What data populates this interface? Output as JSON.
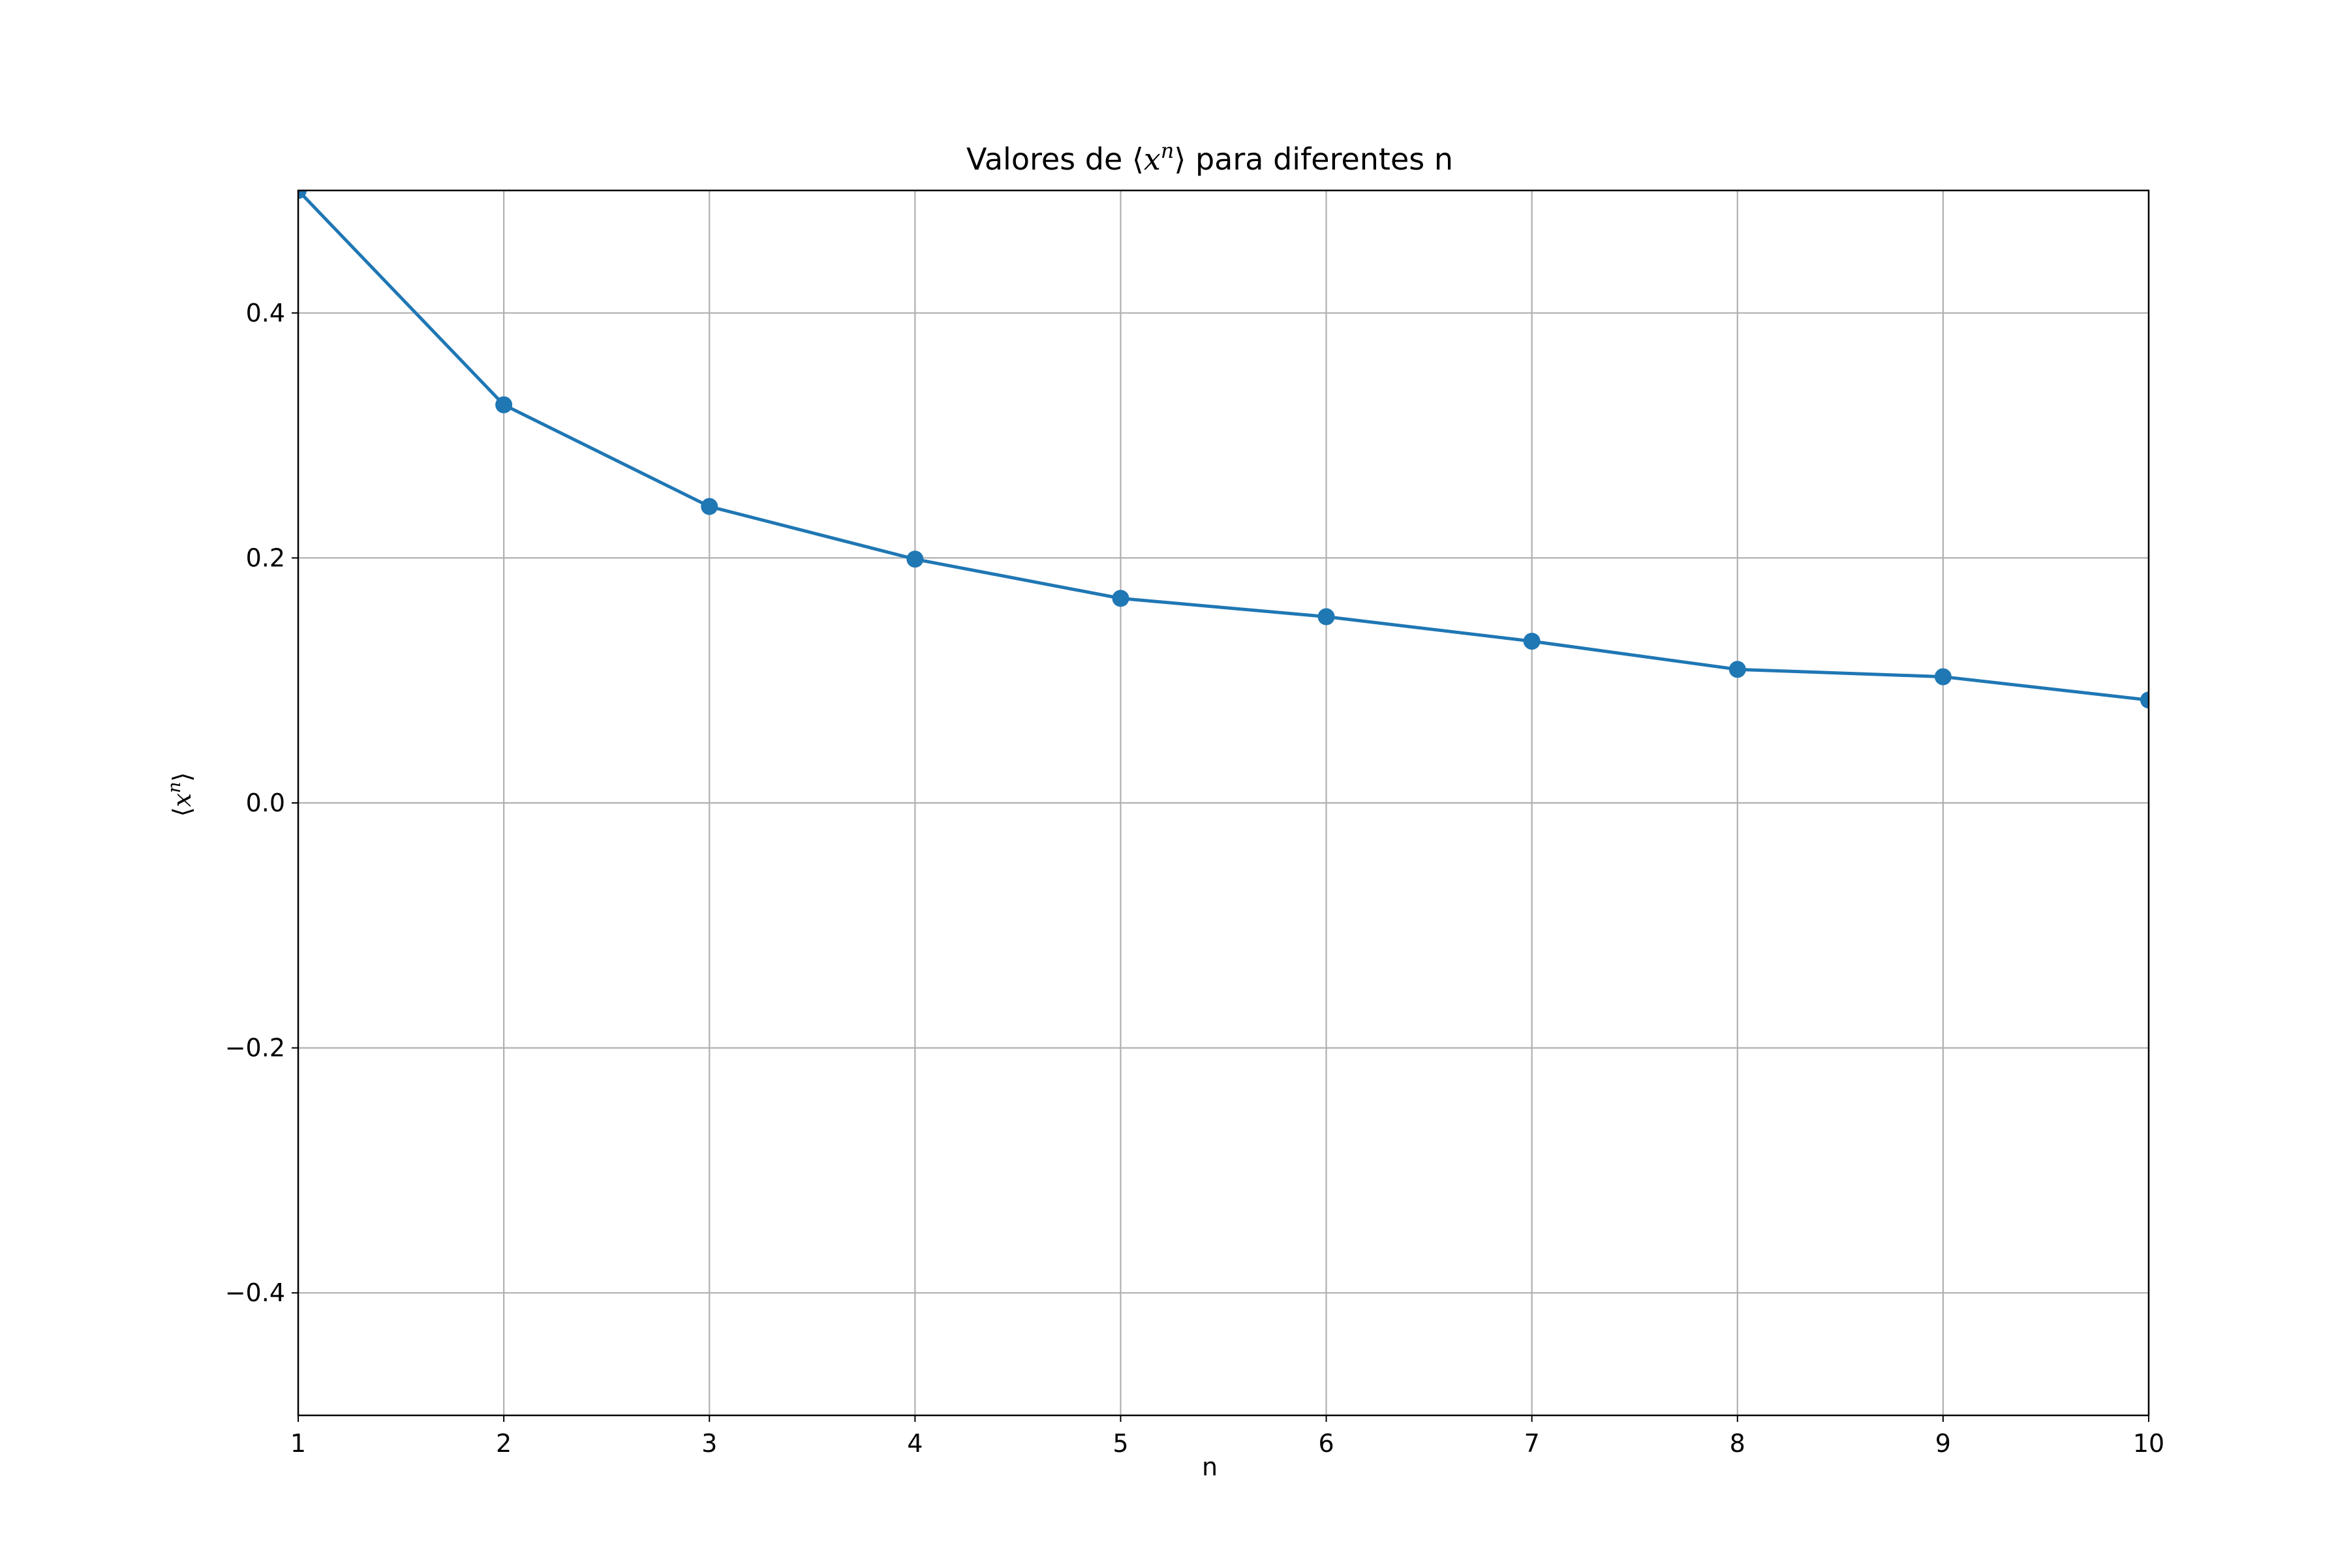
{
  "chart_data": {
    "type": "line",
    "title_parts": {
      "prefix": "Valores de ",
      "math_open": "⟨",
      "math_var": "x",
      "math_sup": "n",
      "math_close": "⟩",
      "suffix": " para diferentes n"
    },
    "xlabel": "n",
    "ylabel_parts": {
      "open": "⟨",
      "var": "x",
      "sup": "n",
      "close": "⟩"
    },
    "x": [
      1,
      2,
      3,
      4,
      5,
      6,
      7,
      8,
      9,
      10
    ],
    "series": [
      {
        "values": [
          0.5,
          0.325,
          0.242,
          0.199,
          0.167,
          0.152,
          0.132,
          0.109,
          0.103,
          0.084
        ],
        "color": "#1f77b4",
        "marker": "circle"
      }
    ],
    "xlim": [
      1,
      10
    ],
    "ylim": [
      -0.5,
      0.5
    ],
    "xticks": [
      1,
      2,
      3,
      4,
      5,
      6,
      7,
      8,
      9,
      10
    ],
    "xtick_labels": [
      "1",
      "2",
      "3",
      "4",
      "5",
      "6",
      "7",
      "8",
      "9",
      "10"
    ],
    "yticks": [
      -0.4,
      -0.2,
      0.0,
      0.2,
      0.4
    ],
    "ytick_labels": [
      "−0.4",
      "−0.2",
      "0.0",
      "0.2",
      "0.4"
    ],
    "grid": true,
    "grid_color": "#b0b0b0"
  }
}
